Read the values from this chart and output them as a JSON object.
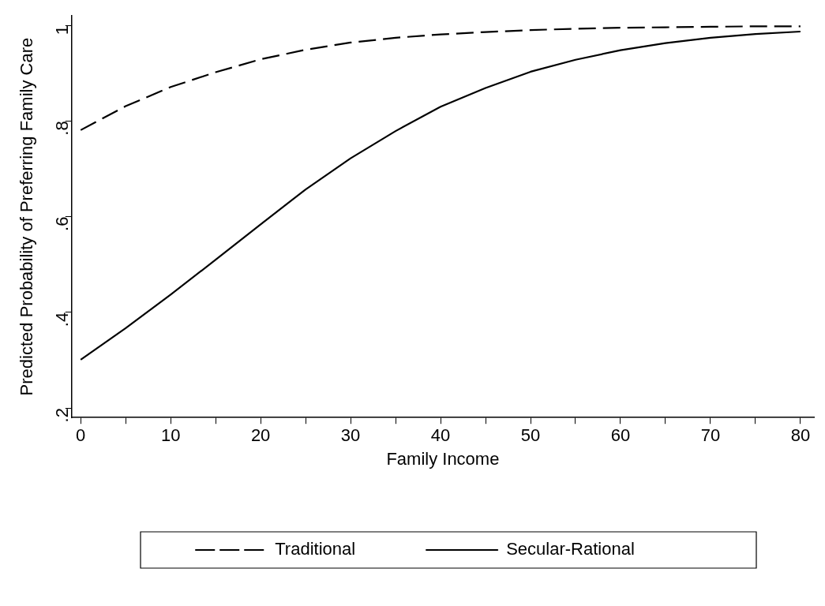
{
  "chart_data": {
    "type": "line",
    "xlabel": "Family Income",
    "ylabel": "Predicted Probability of Preferring Family Care",
    "x": [
      0,
      5,
      10,
      15,
      20,
      25,
      30,
      35,
      40,
      45,
      50,
      55,
      60,
      65,
      70,
      75,
      80
    ],
    "series": [
      {
        "name": "Traditional",
        "color": "#000000",
        "line_style": "dashed",
        "values": [
          0.781,
          0.831,
          0.871,
          0.902,
          0.929,
          0.949,
          0.964,
          0.974,
          0.981,
          0.986,
          0.99,
          0.993,
          0.995,
          0.996,
          0.997,
          0.998,
          0.998
        ]
      },
      {
        "name": "Secular-Rational",
        "color": "#000000",
        "line_style": "solid",
        "values": [
          0.301,
          0.367,
          0.437,
          0.51,
          0.584,
          0.657,
          0.722,
          0.779,
          0.83,
          0.869,
          0.903,
          0.928,
          0.948,
          0.963,
          0.974,
          0.982,
          0.987
        ]
      }
    ],
    "xlim": [
      -1,
      81.5
    ],
    "ylim": [
      0.18,
      1.02
    ],
    "xticks": [
      0,
      {
        "value": 5,
        "label": null
      },
      10,
      {
        "value": 15,
        "label": null
      },
      20,
      {
        "value": 25,
        "label": null
      },
      30,
      {
        "value": 35,
        "label": null
      },
      40,
      {
        "value": 45,
        "label": null
      },
      50,
      {
        "value": 55,
        "label": null
      },
      60,
      {
        "value": 65,
        "label": null
      },
      70,
      {
        "value": 75,
        "label": null
      },
      80
    ],
    "yticks": [
      {
        "value": 0.2,
        "label": ".2"
      },
      {
        "value": 0.4,
        "label": ".4"
      },
      {
        "value": 0.6,
        "label": ".6"
      },
      {
        "value": 0.8,
        "label": ".8"
      },
      1
    ],
    "grid": false,
    "legend": "bottom",
    "marker": "none"
  }
}
